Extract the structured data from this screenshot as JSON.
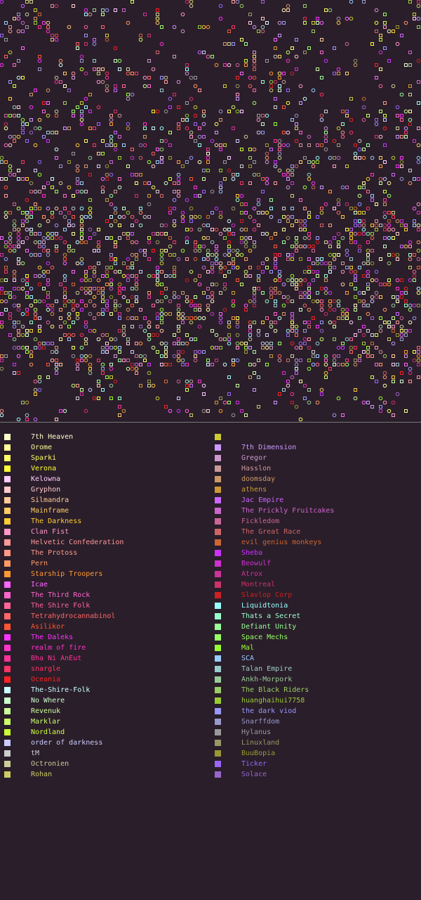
{
  "legend": {
    "left": [
      {
        "name": "7th Heaven",
        "color": "#ffffcc"
      },
      {
        "name": "Orome",
        "color": "#ffff99"
      },
      {
        "name": "Sparki",
        "color": "#ffff66"
      },
      {
        "name": "Verona",
        "color": "#ffff33"
      },
      {
        "name": "Kelowna",
        "color": "#ffccff"
      },
      {
        "name": "Gryphon",
        "color": "#ffcccc"
      },
      {
        "name": "Silmandra",
        "color": "#ffcc99"
      },
      {
        "name": "Mainframe",
        "color": "#ffcc66"
      },
      {
        "name": "The Darkness",
        "color": "#ffcc33"
      },
      {
        "name": "Clan Fist",
        "color": "#ff99cc"
      },
      {
        "name": "Helvetic Confederation",
        "color": "#ff9999"
      },
      {
        "name": "The Protoss",
        "color": "#ff9988"
      },
      {
        "name": "Pern",
        "color": "#ff9966"
      },
      {
        "name": "Starship Troopers",
        "color": "#ff9933"
      },
      {
        "name": "Icae",
        "color": "#ff66ff"
      },
      {
        "name": "The Third Rock",
        "color": "#ff66cc"
      },
      {
        "name": "The Shire Folk",
        "color": "#ff6699"
      },
      {
        "name": "Tetrahydrocannabinol",
        "color": "#ff6666"
      },
      {
        "name": "Asilikor",
        "color": "#ff5533"
      },
      {
        "name": "The Daleks",
        "color": "#ff33ff"
      },
      {
        "name": "realm of fire",
        "color": "#ff33cc"
      },
      {
        "name": "Bha Ni AnEut",
        "color": "#ff3399"
      },
      {
        "name": "snargle",
        "color": "#ff3366"
      },
      {
        "name": "Oceania",
        "color": "#ff2222"
      },
      {
        "name": "The-Shire-Folk",
        "color": "#ccffff"
      },
      {
        "name": "No Where",
        "color": "#ccffcc"
      },
      {
        "name": "Revenuk",
        "color": "#ccff99"
      },
      {
        "name": "Marklar",
        "color": "#ccff66"
      },
      {
        "name": "Nordland",
        "color": "#ccff33"
      },
      {
        "name": "order of darkness",
        "color": "#ccccff"
      },
      {
        "name": "tM",
        "color": "#cccccc"
      },
      {
        "name": "Octronien",
        "color": "#cccc99"
      },
      {
        "name": "Rohan",
        "color": "#cccc66"
      }
    ],
    "right": [
      {
        "name": "",
        "color": "#cccc33"
      },
      {
        "name": "7th Dimension",
        "color": "#cc99ff"
      },
      {
        "name": "Gregor",
        "color": "#cc99cc"
      },
      {
        "name": "Hasslon",
        "color": "#cc9999"
      },
      {
        "name": "doomsday",
        "color": "#cc9966"
      },
      {
        "name": "athens",
        "color": "#cc9933"
      },
      {
        "name": "Jac Empire",
        "color": "#cc66ff"
      },
      {
        "name": "The Prickly Fruitcakes",
        "color": "#cc66cc"
      },
      {
        "name": "Fickledom",
        "color": "#cc6699"
      },
      {
        "name": "The Great Race",
        "color": "#cc6666"
      },
      {
        "name": "evil genius monkeys",
        "color": "#cc6633"
      },
      {
        "name": "Sheba",
        "color": "#cc33ff"
      },
      {
        "name": "Beowulf",
        "color": "#cc33cc"
      },
      {
        "name": "Atrox",
        "color": "#cc3399"
      },
      {
        "name": "Montreal",
        "color": "#cc3366"
      },
      {
        "name": "Slavlop Corp",
        "color": "#cc2222"
      },
      {
        "name": "Liquidtonia",
        "color": "#99ffff"
      },
      {
        "name": "Thats a Secret",
        "color": "#99ffcc"
      },
      {
        "name": "Defiant Unity",
        "color": "#99ff99"
      },
      {
        "name": "Space Mechs",
        "color": "#99ff66"
      },
      {
        "name": "Mal",
        "color": "#99ff33"
      },
      {
        "name": "SCA",
        "color": "#99ccff"
      },
      {
        "name": "Talan Empire",
        "color": "#99cccc"
      },
      {
        "name": "Ankh-Morpork",
        "color": "#99cc99"
      },
      {
        "name": "The Black Riders",
        "color": "#99cc66"
      },
      {
        "name": "huanghaihui7758",
        "color": "#99cc33"
      },
      {
        "name": "the dark viod",
        "color": "#9999ff"
      },
      {
        "name": "Snarffdom",
        "color": "#9999cc"
      },
      {
        "name": "Hylanus",
        "color": "#999999"
      },
      {
        "name": "Linuxland",
        "color": "#999966"
      },
      {
        "name": "BuuBopia",
        "color": "#999933"
      },
      {
        "name": "Ticker",
        "color": "#9966ff"
      },
      {
        "name": "Solace",
        "color": "#9966cc"
      }
    ]
  }
}
